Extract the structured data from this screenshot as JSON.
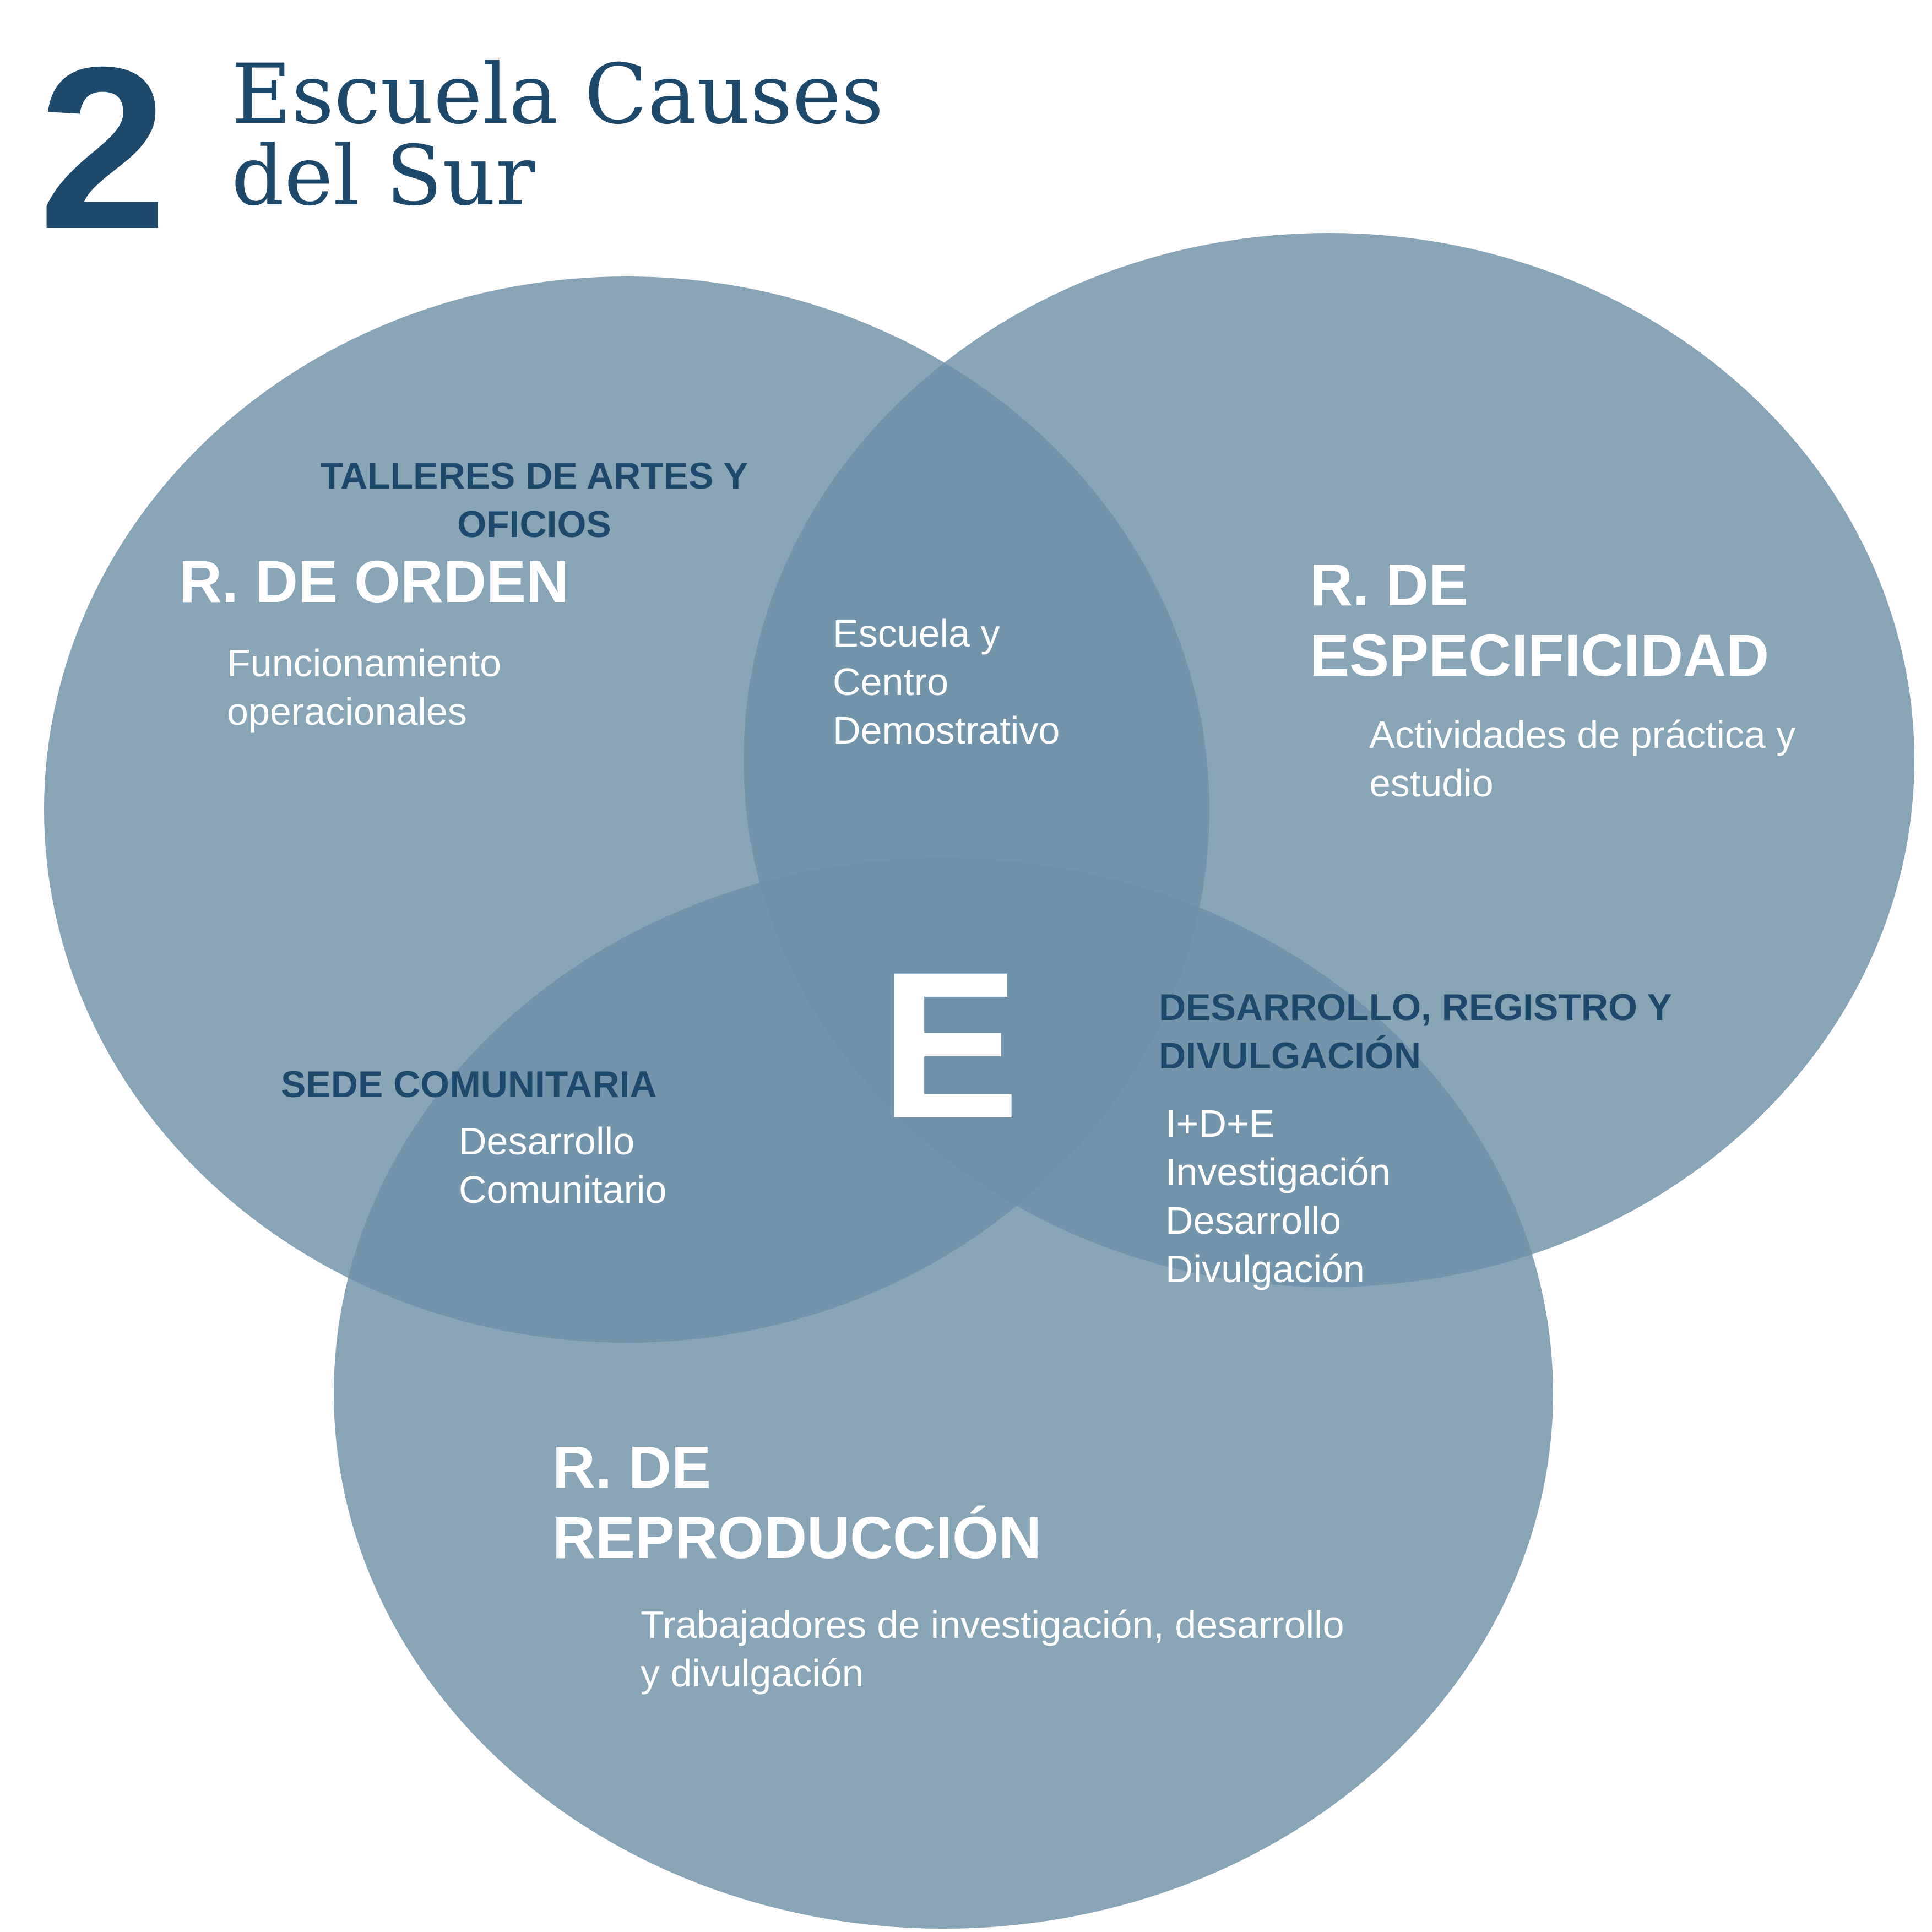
{
  "header": {
    "number": "2",
    "title_line1": "Escuela Causes",
    "title_line2": "del Sur"
  },
  "colors": {
    "primary": "#1d4a6c",
    "circle_fill": "#6e91a8",
    "text_on_fill": "#ffffff",
    "background": "#ffffff"
  },
  "venn": {
    "center_label": "E",
    "circles": [
      {
        "name": "R. DE ORDEN",
        "title_line1": "R. DE ORDEN",
        "desc": "Funcionamiento operacionales"
      },
      {
        "name": "R. DE ESPECIFICIDAD",
        "title_line1": "R. DE",
        "title_line2": "ESPECIFICIDAD",
        "desc": "Actividades de práctica y estudio"
      },
      {
        "name": "R. DE REPRODUCCIÓN",
        "title_line1": "R. DE",
        "title_line2": "REPRODUCCIÓN",
        "desc": "Trabajadores de investigación, desarrollo y divulgación"
      }
    ],
    "intersections": {
      "orden_especificidad": {
        "desc": "Escuela y Centro Demostrativo"
      },
      "orden_reproduccion": {
        "heading": "SEDE COMUNITARIA",
        "desc": "Desarrollo Comunitario"
      },
      "especificidad_reproduccion": {
        "heading": "DESARROLLO, REGISTRO Y DIVULGACIÓN",
        "lines": [
          "I+D+E",
          "Investigación",
          "Desarrollo",
          "Divulgación"
        ]
      }
    },
    "extra_labels": {
      "talleres": "TALLERES DE ARTES Y OFICIOS"
    }
  }
}
